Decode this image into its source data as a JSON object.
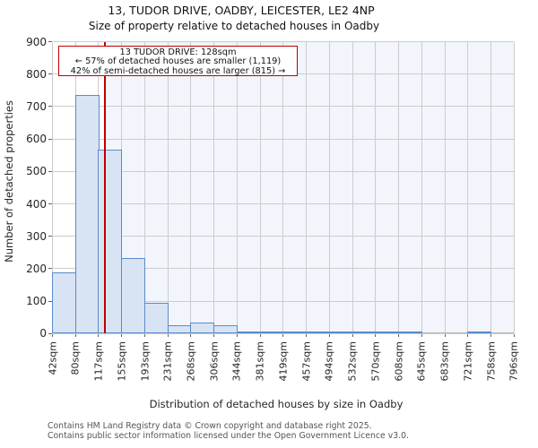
{
  "header": {
    "title": "13, TUDOR DRIVE, OADBY, LEICESTER, LE2 4NP",
    "subtitle": "Size of property relative to detached houses in Oadby"
  },
  "annotation": {
    "line1": "13 TUDOR DRIVE: 128sqm",
    "line2": "← 57% of detached houses are smaller (1,119)",
    "line3": "42% of semi-detached houses are larger (815) →"
  },
  "chart_data": {
    "type": "bar",
    "title": "13, TUDOR DRIVE, OADBY, LEICESTER, LE2 4NP — Size of property relative to detached houses in Oadby",
    "xlabel": "Distribution of detached houses by size in Oadby",
    "ylabel": "Number of detached properties",
    "x_tick_labels": [
      "42sqm",
      "80sqm",
      "117sqm",
      "155sqm",
      "193sqm",
      "231sqm",
      "268sqm",
      "306sqm",
      "344sqm",
      "381sqm",
      "419sqm",
      "457sqm",
      "494sqm",
      "532sqm",
      "570sqm",
      "608sqm",
      "645sqm",
      "683sqm",
      "721sqm",
      "758sqm",
      "796sqm"
    ],
    "bin_starts_sqm": [
      42,
      80,
      117,
      155,
      193,
      231,
      268,
      306,
      344,
      381,
      419,
      457,
      494,
      532,
      570,
      608,
      645,
      683,
      721,
      758
    ],
    "values": [
      190,
      735,
      568,
      233,
      95,
      25,
      35,
      27,
      5,
      4,
      7,
      2,
      4,
      2,
      1,
      3,
      0,
      0,
      3,
      0
    ],
    "x_range_sqm": [
      42,
      796
    ],
    "ylim": [
      0,
      900
    ],
    "y_ticks": [
      0,
      100,
      200,
      300,
      400,
      500,
      600,
      700,
      800,
      900
    ],
    "grid": true,
    "legend": "none",
    "marker": {
      "label": "13 TUDOR DRIVE",
      "size_sqm": 128
    },
    "colors": {
      "bar_fill": "#d8e3f3",
      "bar_edge": "#5a8cc9",
      "marker_line": "#c00000",
      "annotation_border": "#c00000",
      "highlight_bg": "#f2f5fb",
      "grid": "#cccccc"
    }
  },
  "footer": {
    "line1": "Contains HM Land Registry data © Crown copyright and database right 2025.",
    "line2": "Contains public sector information licensed under the Open Government Licence v3.0."
  }
}
